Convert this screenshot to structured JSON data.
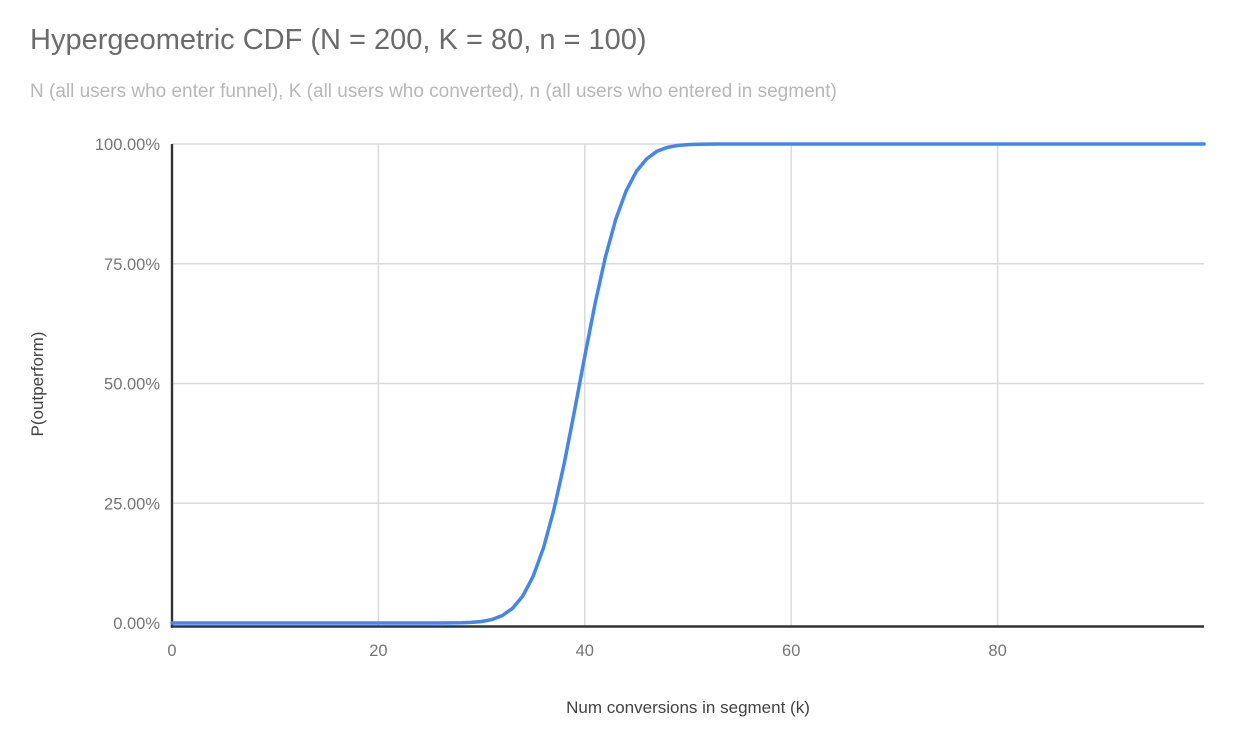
{
  "chart_data": {
    "type": "line",
    "title": "Hypergeometric CDF (N = 200, K = 80, n = 100)",
    "subtitle": "N (all users who enter funnel), K (all users who converted), n (all users who entered in segment)",
    "params": {
      "N": 200,
      "K": 80,
      "n": 100
    },
    "xlabel": "Num conversions in segment (k)",
    "ylabel": "P(outperform)",
    "xlim": [
      0,
      100
    ],
    "ylim": [
      0,
      1
    ],
    "grid": true,
    "legend": "none",
    "x_ticks": [
      {
        "value": 0,
        "label": "0"
      },
      {
        "value": 20,
        "label": "20"
      },
      {
        "value": 40,
        "label": "40"
      },
      {
        "value": 60,
        "label": "60"
      },
      {
        "value": 80,
        "label": "80"
      }
    ],
    "y_ticks": [
      {
        "value": 0,
        "label": "0.00%"
      },
      {
        "value": 0.25,
        "label": "25.00%"
      },
      {
        "value": 0.5,
        "label": "50.00%"
      },
      {
        "value": 0.75,
        "label": "75.00%"
      },
      {
        "value": 1,
        "label": "100.00%"
      }
    ],
    "colors": {
      "line": "#4285f4",
      "axis": "#333333",
      "grid": "#dadada",
      "tick_label": "#757575",
      "axis_title": "#424242",
      "title": "#6b6b6b",
      "subtitle": "#b7b7b7",
      "background": "#ffffff"
    },
    "series": [
      {
        "name": "P(outperform)",
        "color": "#4285f4",
        "x": [
          0,
          1,
          2,
          3,
          4,
          5,
          6,
          7,
          8,
          9,
          10,
          11,
          12,
          13,
          14,
          15,
          16,
          17,
          18,
          19,
          20,
          21,
          22,
          23,
          24,
          25,
          26,
          27,
          28,
          29,
          30,
          31,
          32,
          33,
          34,
          35,
          36,
          37,
          38,
          39,
          40,
          41,
          42,
          43,
          44,
          45,
          46,
          47,
          48,
          49,
          50,
          51,
          52,
          53,
          54,
          55,
          56,
          57,
          58,
          59,
          60,
          61,
          62,
          63,
          64,
          65,
          66,
          67,
          68,
          69,
          70,
          71,
          72,
          73,
          74,
          75,
          76,
          77,
          78,
          79,
          80,
          81,
          82,
          83,
          84,
          85,
          86,
          87,
          88,
          89,
          90,
          91,
          92,
          93,
          94,
          95,
          96,
          97,
          98,
          99,
          100
        ],
        "y": [
          0,
          0,
          0,
          0,
          0,
          0,
          0,
          0,
          0,
          0,
          0,
          0,
          0,
          0,
          0,
          0,
          0,
          0,
          0,
          0,
          0,
          0,
          0,
          0,
          0,
          2e-05,
          5e-05,
          0.00016,
          0.00046,
          0.00125,
          0.0031,
          0.0072,
          0.0154,
          0.0307,
          0.0567,
          0.0977,
          0.157,
          0.236,
          0.333,
          0.443,
          0.557,
          0.667,
          0.764,
          0.843,
          0.902,
          0.943,
          0.969,
          0.985,
          0.993,
          0.997,
          0.9987,
          0.9995,
          0.9998,
          1,
          1,
          1,
          1,
          1,
          1,
          1,
          1,
          1,
          1,
          1,
          1,
          1,
          1,
          1,
          1,
          1,
          1,
          1,
          1,
          1,
          1,
          1,
          1,
          1,
          1,
          1,
          1,
          1,
          1,
          1,
          1,
          1,
          1,
          1,
          1,
          1,
          1,
          1,
          1,
          1,
          1,
          1,
          1,
          1,
          1,
          1,
          1
        ]
      }
    ]
  }
}
